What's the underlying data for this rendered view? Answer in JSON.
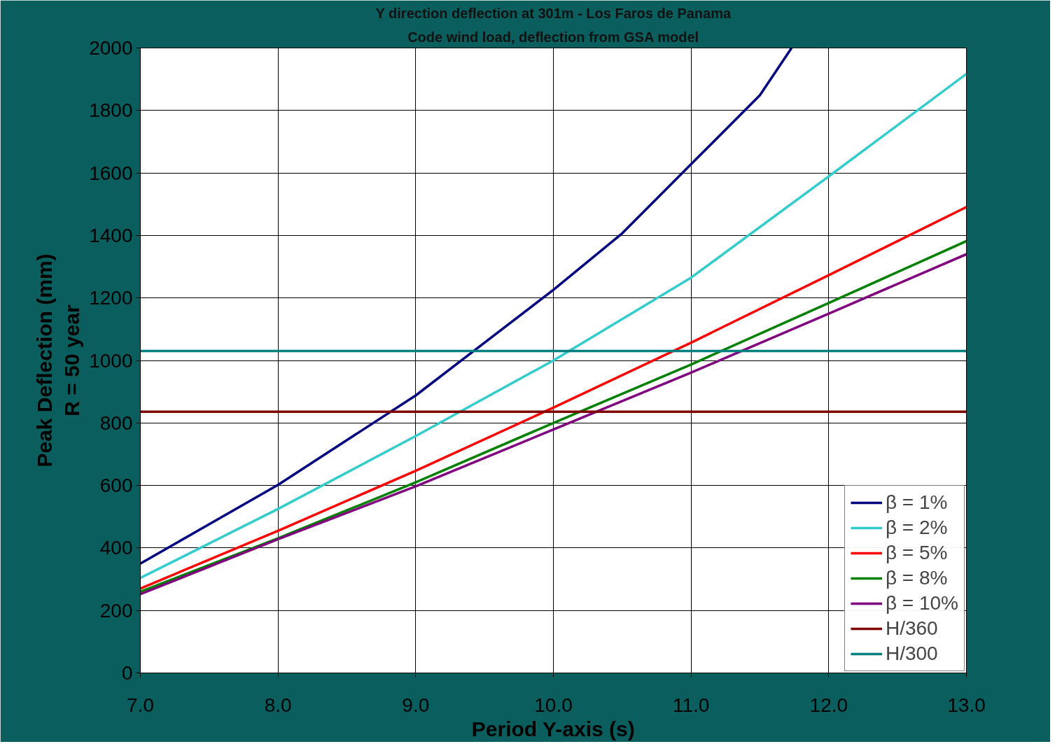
{
  "chart_data": {
    "type": "line",
    "title": "Y direction deflection at 301m - Los Faros de Panama",
    "subtitle": "Code wind load, deflection from GSA model",
    "xlabel": "Period Y-axis (s)",
    "ylabel": "Peak Deflection (mm)\nR = 50 year",
    "x": [
      7,
      8,
      9,
      10,
      10.5,
      11,
      11.5,
      11.73
    ],
    "series": [
      {
        "name": "β = 1%",
        "color": "#000080",
        "values": [
          350,
          602,
          888,
          1226,
          1407,
          1628,
          1849,
          2000
        ]
      },
      {
        "name": "β = 2%",
        "color": "#33cccc",
        "x": [
          7,
          8,
          9,
          10,
          11,
          12,
          13
        ],
        "values": [
          304,
          525,
          758,
          1000,
          1265,
          1589,
          1917
        ]
      },
      {
        "name": "β = 5%",
        "color": "#ff0000",
        "x": [
          7,
          8,
          9,
          10,
          11,
          12,
          13
        ],
        "values": [
          270,
          455,
          647,
          849,
          1057,
          1273,
          1491
        ]
      },
      {
        "name": "β = 8%",
        "color": "#008000",
        "x": [
          7,
          8,
          9,
          10,
          11,
          12,
          13
        ],
        "values": [
          260,
          431,
          610,
          800,
          987,
          1184,
          1382
        ]
      },
      {
        "name": "β = 10%",
        "color": "#800080",
        "x": [
          7,
          8,
          9,
          10,
          11,
          12,
          13
        ],
        "values": [
          252,
          428,
          597,
          779,
          961,
          1150,
          1340
        ]
      },
      {
        "name": "H/360",
        "color": "#800000",
        "x": [
          7,
          13
        ],
        "values": [
          836,
          836
        ]
      },
      {
        "name": "H/300",
        "color": "#008080",
        "x": [
          7,
          13
        ],
        "values": [
          1030,
          1030
        ]
      }
    ],
    "xlim": [
      7,
      13
    ],
    "ylim": [
      0,
      2000
    ],
    "xticks": [
      {
        "value": 7,
        "label": "7.0"
      },
      {
        "value": 8,
        "label": "8.0"
      },
      {
        "value": 9,
        "label": "9.0"
      },
      {
        "value": 10,
        "label": "10.0"
      },
      {
        "value": 11,
        "label": "11.0"
      },
      {
        "value": 12,
        "label": "12.0"
      },
      {
        "value": 13,
        "label": "13.0"
      }
    ],
    "yticks": [
      0,
      200,
      400,
      600,
      800,
      1000,
      1200,
      1400,
      1600,
      1800,
      2000
    ],
    "grid": true,
    "legend": "bottom right",
    "marker": "none",
    "line_style": "solid"
  }
}
